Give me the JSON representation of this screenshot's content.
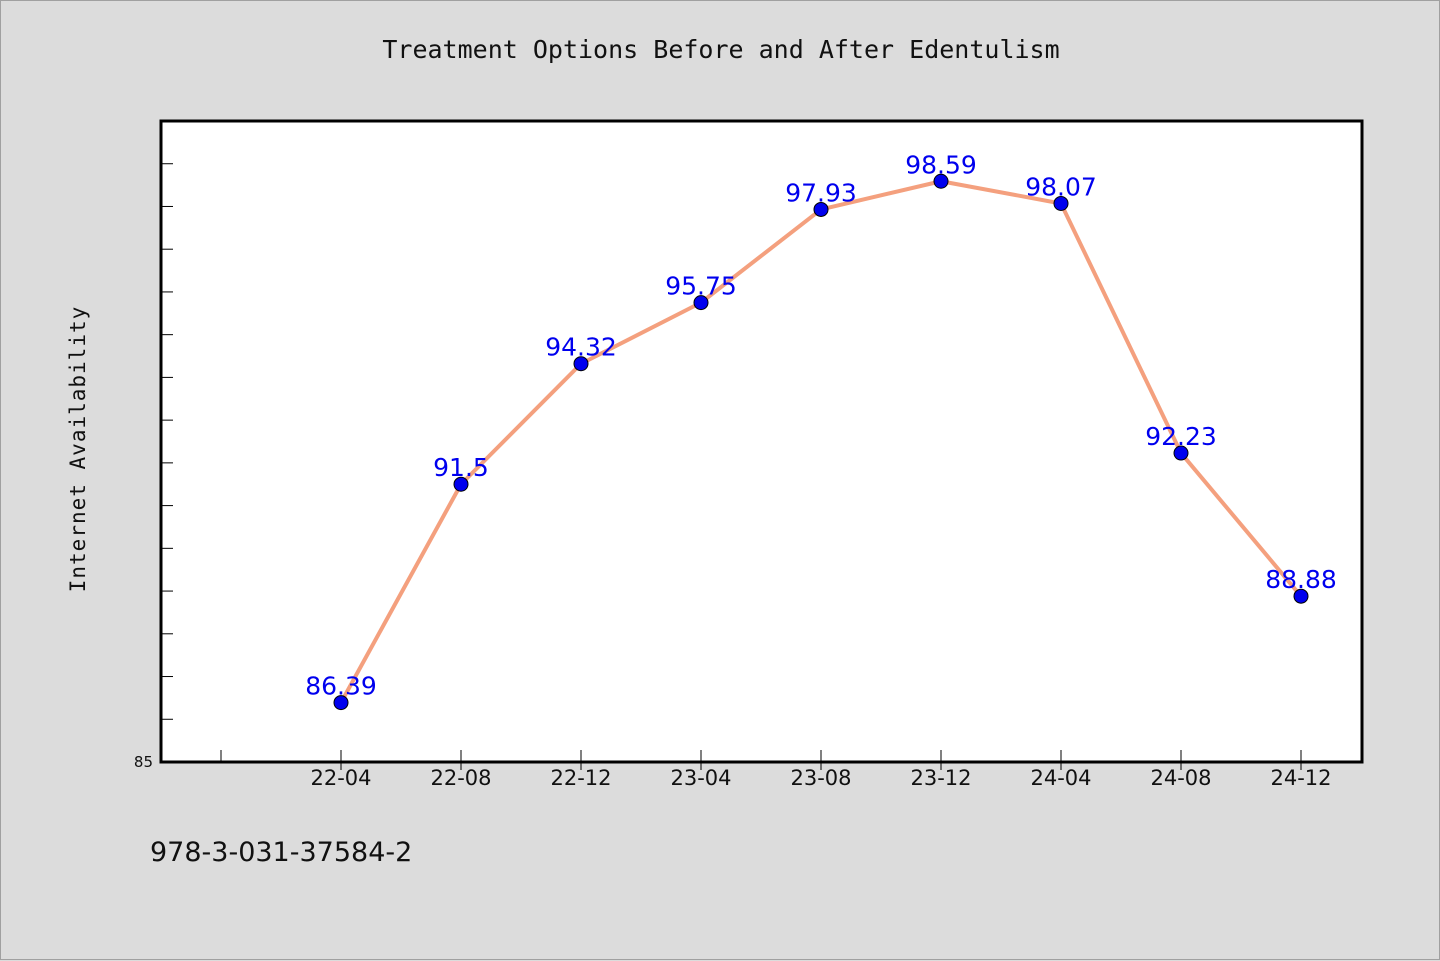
{
  "chart_data": {
    "type": "line",
    "title": "Treatment Options Before and After Edentulism",
    "xlabel": "",
    "ylabel": "Internet Availability",
    "categories": [
      "22-04",
      "22-08",
      "22-12",
      "23-04",
      "23-08",
      "23-12",
      "24-04",
      "24-08",
      "24-12"
    ],
    "series": [
      {
        "values": [
          86.39,
          91.5,
          94.32,
          95.75,
          97.93,
          98.59,
          98.07,
          92.23,
          88.88
        ]
      }
    ],
    "data_labels": [
      "86.39",
      "91.5",
      "94.32",
      "95.75",
      "97.93",
      "98.59",
      "98.07",
      "92.23",
      "88.88"
    ],
    "ylim": [
      85,
      100
    ],
    "yticks_labeled": [
      "85"
    ],
    "grid": false,
    "legend": "none",
    "colors": {
      "line": "#f4a07e",
      "marker": "#0000ee",
      "label": "#0000ee",
      "background": "#dcdcdc",
      "plot_background": "#ffffff"
    }
  },
  "footer": {
    "isbn": "978-3-031-37584-2"
  }
}
